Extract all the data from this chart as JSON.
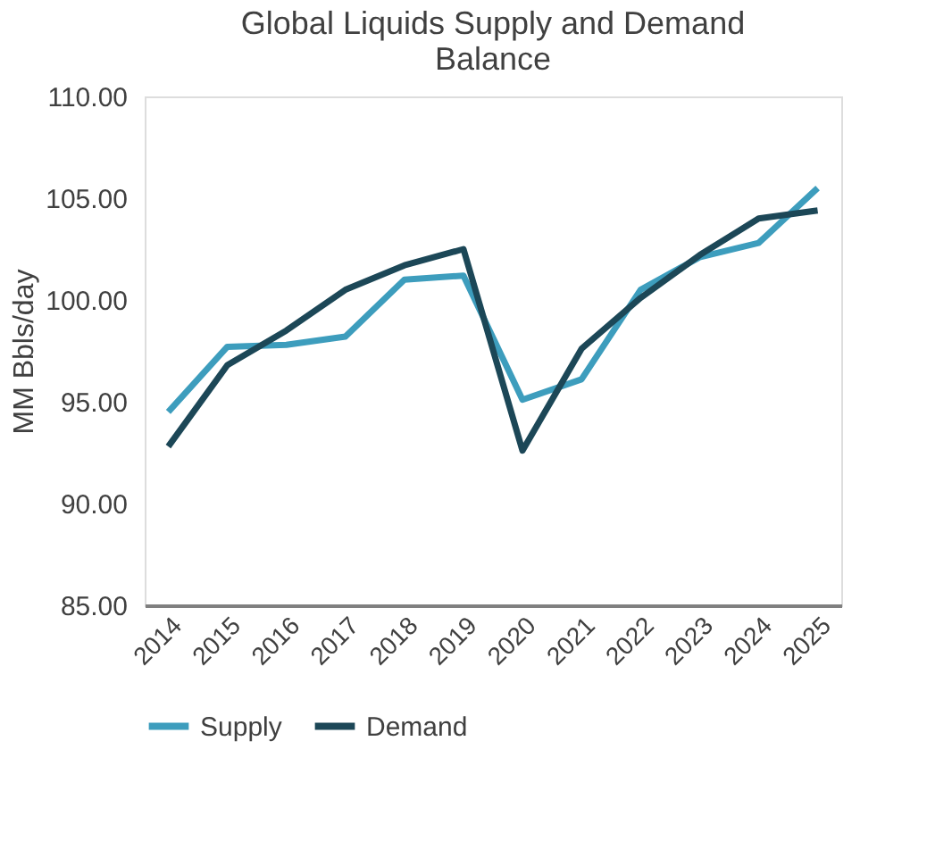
{
  "chart_data": {
    "type": "line",
    "title": "Global Liquids Supply and Demand Balance",
    "ylabel": "MM Bbls/day",
    "categories": [
      "2014",
      "2015",
      "2016",
      "2017",
      "2018",
      "2019",
      "2020",
      "2021",
      "2022",
      "2023",
      "2024",
      "2025"
    ],
    "series": [
      {
        "name": "Supply",
        "color": "#3d9dbd",
        "values": [
          94.5,
          97.7,
          97.8,
          98.2,
          101.0,
          101.2,
          95.1,
          96.1,
          100.5,
          102.1,
          102.8,
          105.5
        ]
      },
      {
        "name": "Demand",
        "color": "#1c4757",
        "values": [
          92.8,
          96.8,
          98.5,
          100.5,
          101.7,
          102.5,
          92.6,
          97.6,
          100.1,
          102.2,
          104.0,
          104.4
        ]
      }
    ],
    "ylim": [
      85,
      110
    ],
    "yticks": [
      {
        "value": 85,
        "label": "85.00"
      },
      {
        "value": 90,
        "label": "90.00"
      },
      {
        "value": 95,
        "label": "95.00"
      },
      {
        "value": 100,
        "label": "100.00"
      },
      {
        "value": 105,
        "label": "105.00"
      },
      {
        "value": 110,
        "label": "110.00"
      }
    ],
    "grid": false,
    "legend": "bottom",
    "marker": "none",
    "line_style": "solid"
  }
}
